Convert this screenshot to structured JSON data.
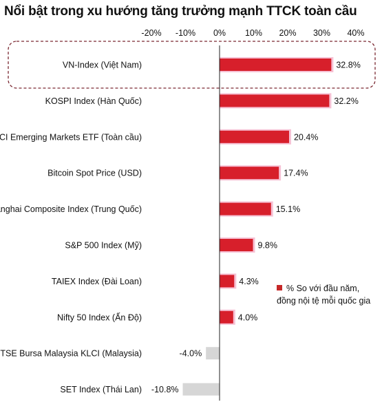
{
  "title": "Nổi bật trong xu hướng tăng trưởng mạnh TTCK toàn cầu",
  "chart_data": {
    "type": "bar",
    "orientation": "horizontal",
    "title": "Nổi bật trong xu hướng tăng trưởng mạnh TTCK toàn cầu",
    "categories": [
      "VN-Index (Việt Nam)",
      "KOSPI Index (Hàn Quốc)",
      "MSCI Emerging Markets ETF (Toàn cầu)",
      "Bitcoin Spot Price (USD)",
      "Shanghai Composite Index (Trung Quốc)",
      "S&P 500 Index (Mỹ)",
      "TAIEX Index (Đài Loan)",
      "Nifty 50 Index (Ấn Độ)",
      "FTSE Bursa Malaysia KLCI (Malaysia)",
      "SET Index (Thái Lan)"
    ],
    "series": [
      {
        "name": "% So với đầu năm, đồng nội tệ mỗi quốc gia",
        "values": [
          32.8,
          32.2,
          20.4,
          17.4,
          15.1,
          9.8,
          4.3,
          4.0,
          -4.0,
          -10.8
        ],
        "value_labels": [
          "32.8%",
          "32.2%",
          "20.4%",
          "17.4%",
          "15.1%",
          "9.8%",
          "4.3%",
          "4.0%",
          "-4.0%",
          "-10.8%"
        ]
      }
    ],
    "x_ticks": [
      "-20%",
      "-10%",
      "0%",
      "10%",
      "20%",
      "30%",
      "40%"
    ],
    "x_tick_values": [
      -20,
      -10,
      0,
      10,
      20,
      30,
      40
    ],
    "xlim": [
      -20,
      40
    ],
    "highlighted_category": "VN-Index (Việt Nam)",
    "colors": {
      "positive": "#d71f2b",
      "positive_halo": "#f6c1d4",
      "negative": "#d6d6d6",
      "axis": "#222222",
      "highlight_border": "#7a2730"
    },
    "legend": {
      "text": "% So với đầu năm, đồng nội tệ mỗi quốc gia",
      "position": "right-lower",
      "swatch_color": "#c62828"
    },
    "grid": false
  }
}
